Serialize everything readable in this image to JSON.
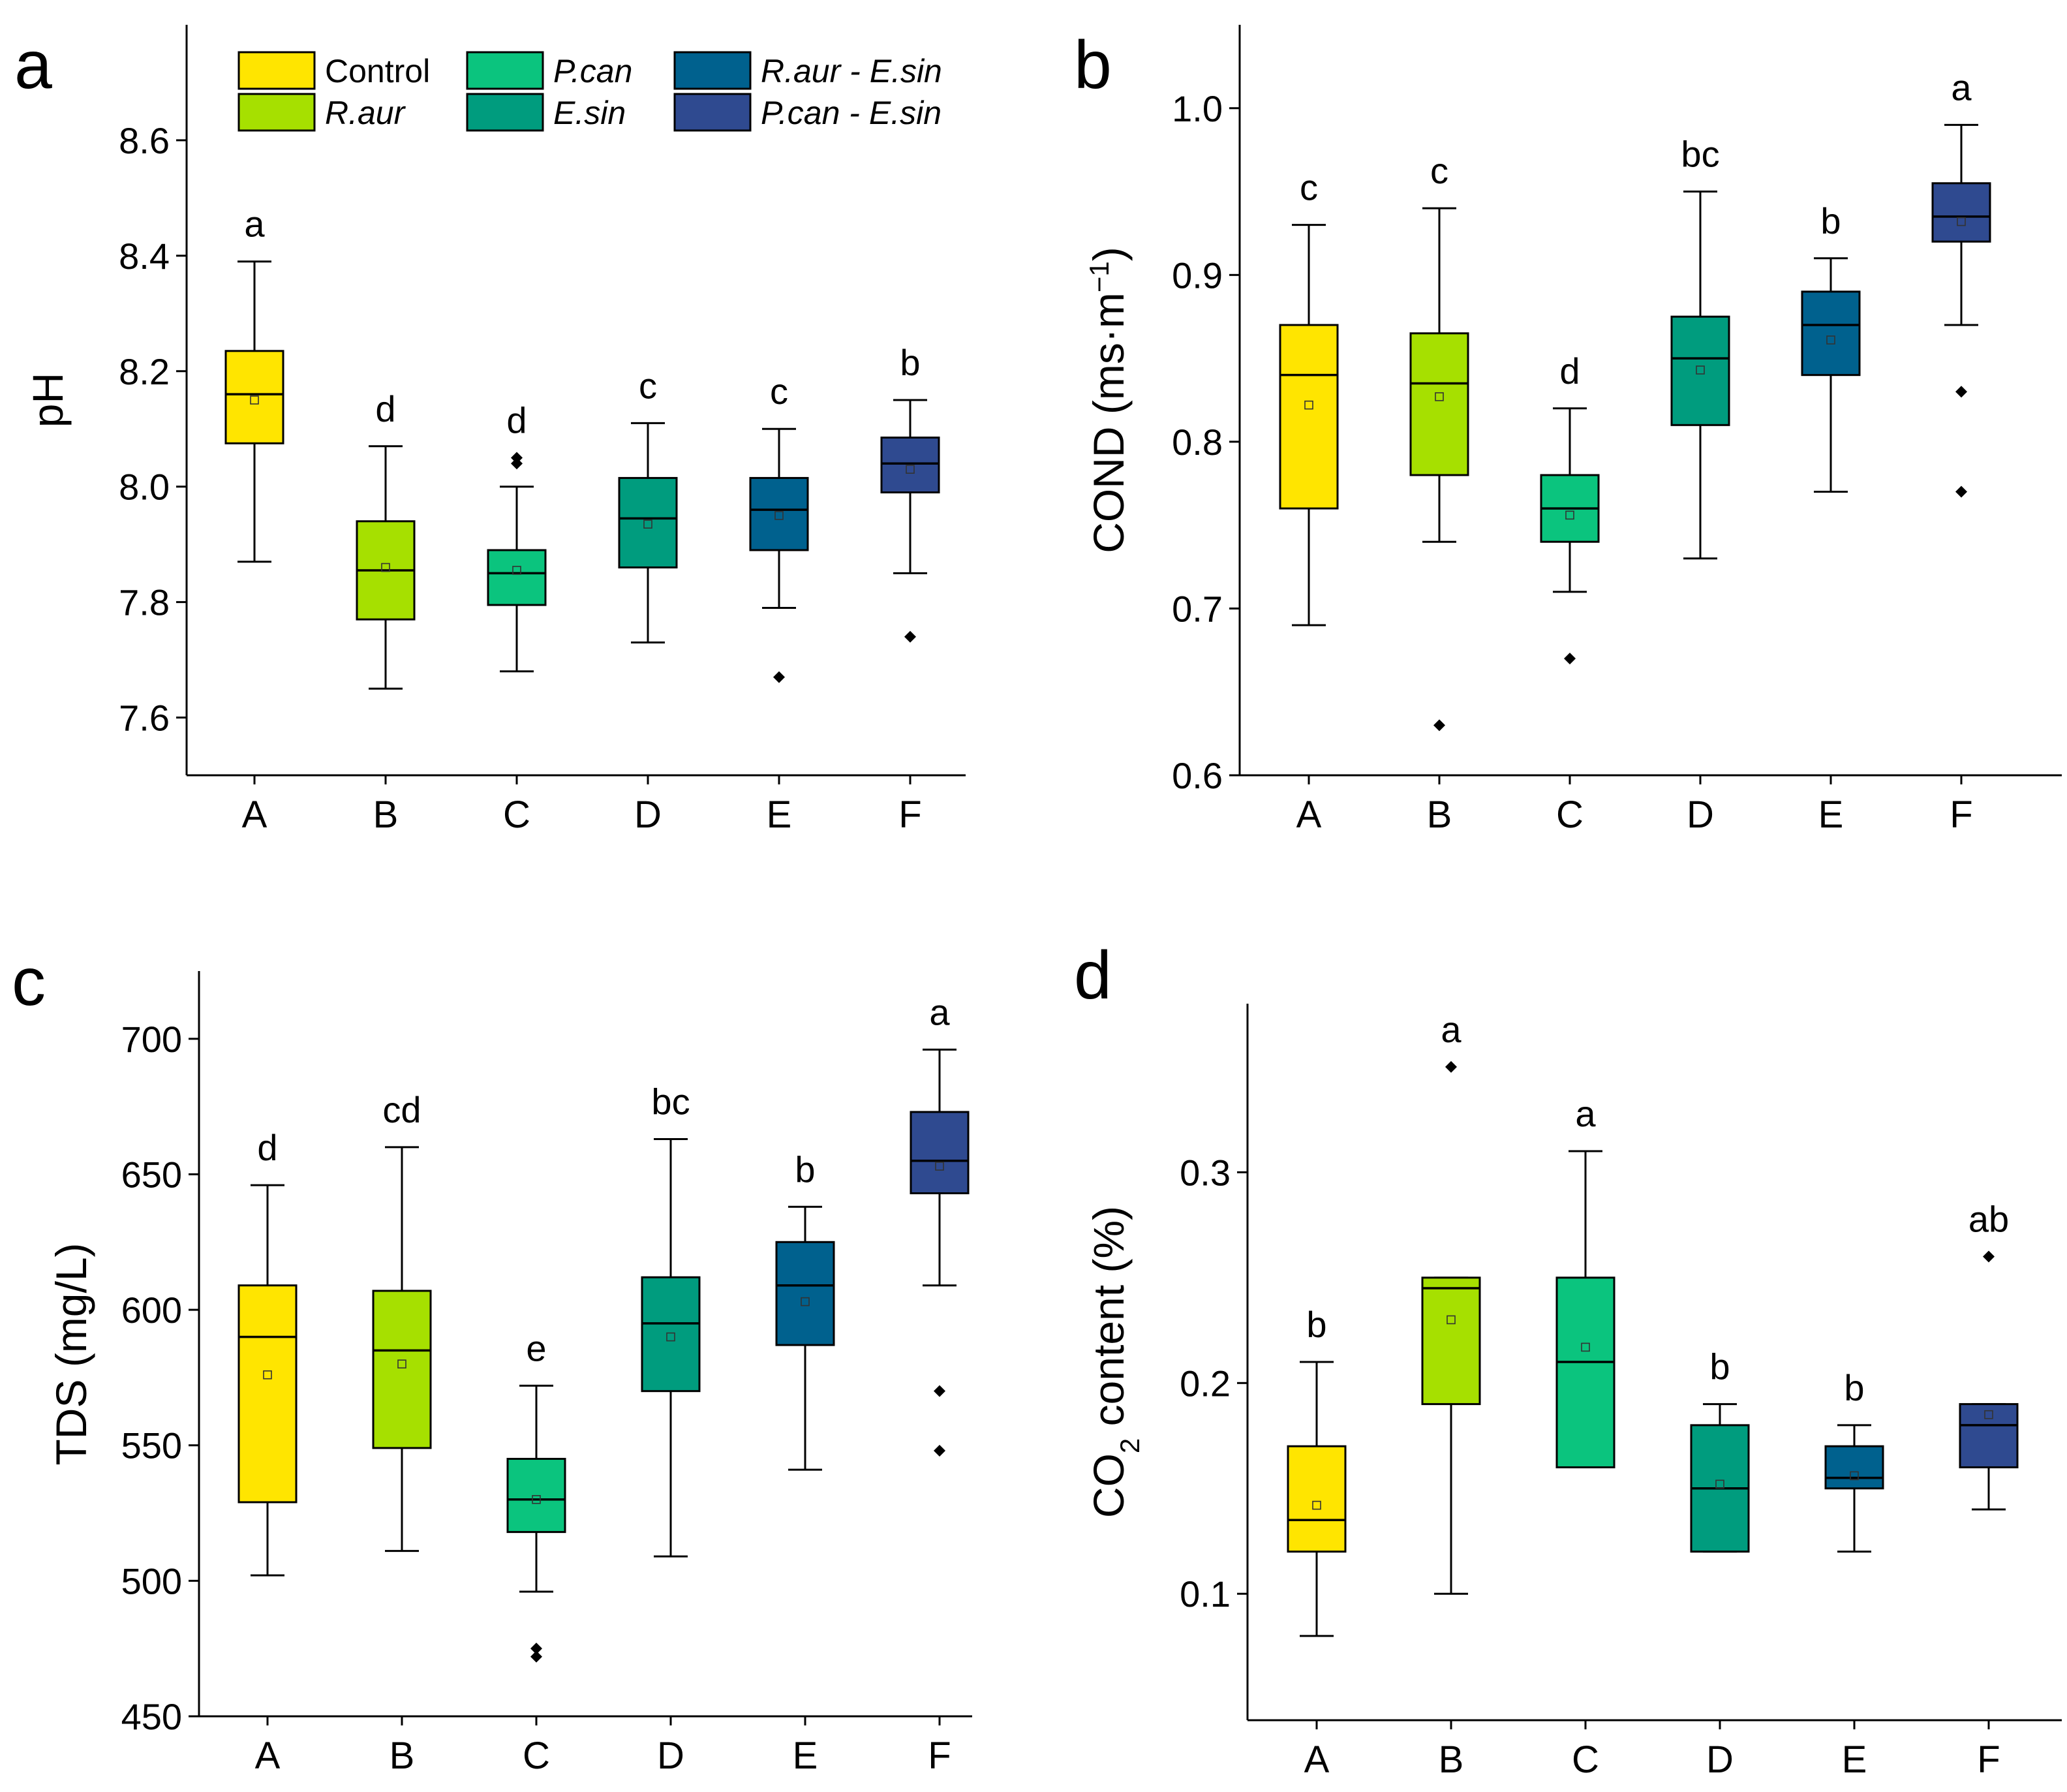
{
  "legend": {
    "entries": [
      {
        "label": "Control",
        "italic": false,
        "color": "#FFE500"
      },
      {
        "label": "R.aur",
        "italic": true,
        "color": "#A6E000"
      },
      {
        "label": "P.can",
        "italic": true,
        "color": "#0BC47E"
      },
      {
        "label": "E.sin",
        "italic": true,
        "color": "#009C7E"
      },
      {
        "label": "R.aur - E.sin",
        "italic": true,
        "color": "#00618E"
      },
      {
        "label": "P.can - E.sin",
        "italic": true,
        "color": "#2F4A90"
      }
    ]
  },
  "chart_data": [
    {
      "type": "box",
      "panel": "a",
      "ylabel": "pH",
      "ylim": [
        7.5,
        8.8
      ],
      "yticks": [
        7.6,
        7.8,
        8.0,
        8.2,
        8.4,
        8.6
      ],
      "ytick_labels": [
        "7.6",
        "7.8",
        "8.0",
        "8.2",
        "8.4",
        "8.6"
      ],
      "categories": [
        "A",
        "B",
        "C",
        "D",
        "E",
        "F"
      ],
      "boxes": [
        {
          "min": 7.87,
          "q1": 8.075,
          "median": 8.16,
          "q3": 8.235,
          "max": 8.39,
          "mean": 8.15,
          "outliers": [],
          "sig": "a"
        },
        {
          "min": 7.65,
          "q1": 7.77,
          "median": 7.855,
          "q3": 7.94,
          "max": 8.07,
          "mean": 7.86,
          "outliers": [],
          "sig": "d"
        },
        {
          "min": 7.68,
          "q1": 7.795,
          "median": 7.85,
          "q3": 7.89,
          "max": 8.0,
          "mean": 7.855,
          "outliers": [
            8.04,
            8.05
          ],
          "sig": "d"
        },
        {
          "min": 7.73,
          "q1": 7.86,
          "median": 7.945,
          "q3": 8.015,
          "max": 8.11,
          "mean": 7.935,
          "outliers": [],
          "sig": "c"
        },
        {
          "min": 7.79,
          "q1": 7.89,
          "median": 7.96,
          "q3": 8.015,
          "max": 8.1,
          "mean": 7.95,
          "outliers": [
            7.67
          ],
          "sig": "c"
        },
        {
          "min": 7.85,
          "q1": 7.99,
          "median": 8.04,
          "q3": 8.085,
          "max": 8.15,
          "mean": 8.03,
          "outliers": [
            7.74
          ],
          "sig": "b"
        }
      ]
    },
    {
      "type": "box",
      "panel": "b",
      "ylabel": "COND (ms·m",
      "ylabel_sup": "−1",
      "ylabel_end": ")",
      "ylim": [
        0.6,
        1.05
      ],
      "yticks": [
        0.6,
        0.7,
        0.8,
        0.9,
        1.0
      ],
      "ytick_labels": [
        "0.6",
        "0.7",
        "0.8",
        "0.9",
        "1.0"
      ],
      "categories": [
        "A",
        "B",
        "C",
        "D",
        "E",
        "F"
      ],
      "boxes": [
        {
          "min": 0.69,
          "q1": 0.76,
          "median": 0.84,
          "q3": 0.87,
          "max": 0.93,
          "mean": 0.822,
          "outliers": [],
          "sig": "c"
        },
        {
          "min": 0.74,
          "q1": 0.78,
          "median": 0.835,
          "q3": 0.865,
          "max": 0.94,
          "mean": 0.827,
          "outliers": [
            0.63
          ],
          "sig": "c"
        },
        {
          "min": 0.71,
          "q1": 0.74,
          "median": 0.76,
          "q3": 0.78,
          "max": 0.82,
          "mean": 0.756,
          "outliers": [
            0.67
          ],
          "sig": "d"
        },
        {
          "min": 0.73,
          "q1": 0.81,
          "median": 0.85,
          "q3": 0.875,
          "max": 0.95,
          "mean": 0.843,
          "outliers": [],
          "sig": "bc"
        },
        {
          "min": 0.77,
          "q1": 0.84,
          "median": 0.87,
          "q3": 0.89,
          "max": 0.91,
          "mean": 0.861,
          "outliers": [],
          "sig": "b"
        },
        {
          "min": 0.87,
          "q1": 0.92,
          "median": 0.935,
          "q3": 0.955,
          "max": 0.99,
          "mean": 0.932,
          "outliers": [
            0.83,
            0.77
          ],
          "sig": "a"
        }
      ]
    },
    {
      "type": "box",
      "panel": "c",
      "ylabel": "TDS (mg/L)",
      "ylim": [
        450,
        725
      ],
      "yticks": [
        450,
        500,
        550,
        600,
        650,
        700
      ],
      "ytick_labels": [
        "450",
        "500",
        "550",
        "600",
        "650",
        "700"
      ],
      "categories": [
        "A",
        "B",
        "C",
        "D",
        "E",
        "F"
      ],
      "boxes": [
        {
          "min": 502,
          "q1": 529,
          "median": 590,
          "q3": 609,
          "max": 646,
          "mean": 576,
          "outliers": [],
          "sig": "d"
        },
        {
          "min": 511,
          "q1": 549,
          "median": 585,
          "q3": 607,
          "max": 660,
          "mean": 580,
          "outliers": [],
          "sig": "cd"
        },
        {
          "min": 496,
          "q1": 518,
          "median": 530,
          "q3": 545,
          "max": 572,
          "mean": 530,
          "outliers": [
            475,
            472
          ],
          "sig": "e"
        },
        {
          "min": 509,
          "q1": 570,
          "median": 595,
          "q3": 612,
          "max": 663,
          "mean": 590,
          "outliers": [],
          "sig": "bc"
        },
        {
          "min": 541,
          "q1": 587,
          "median": 609,
          "q3": 625,
          "max": 638,
          "mean": 603,
          "outliers": [],
          "sig": "b"
        },
        {
          "min": 609,
          "q1": 643,
          "median": 655,
          "q3": 673,
          "max": 696,
          "mean": 653,
          "outliers": [
            570,
            548
          ],
          "sig": "a"
        }
      ]
    },
    {
      "type": "box",
      "panel": "d",
      "ylabel": "CO",
      "ylabel_sub": "2",
      "ylabel_end": " content (%)",
      "ylim": [
        0.04,
        0.38
      ],
      "yticks": [
        0.1,
        0.2,
        0.3
      ],
      "ytick_labels": [
        "0.1",
        "0.2",
        "0.3"
      ],
      "categories": [
        "A",
        "B",
        "C",
        "D",
        "E",
        "F"
      ],
      "boxes": [
        {
          "min": 0.08,
          "q1": 0.12,
          "median": 0.135,
          "q3": 0.17,
          "max": 0.21,
          "mean": 0.142,
          "outliers": [],
          "sig": "b"
        },
        {
          "min": 0.1,
          "q1": 0.19,
          "median": 0.245,
          "q3": 0.25,
          "max": 0.25,
          "mean": 0.23,
          "outliers": [
            0.35
          ],
          "sig": "a"
        },
        {
          "min": 0.16,
          "q1": 0.16,
          "median": 0.21,
          "q3": 0.25,
          "max": 0.31,
          "mean": 0.217,
          "outliers": [],
          "sig": "a"
        },
        {
          "min": 0.12,
          "q1": 0.12,
          "median": 0.15,
          "q3": 0.18,
          "max": 0.19,
          "mean": 0.152,
          "outliers": [],
          "sig": "b"
        },
        {
          "min": 0.12,
          "q1": 0.15,
          "median": 0.155,
          "q3": 0.17,
          "max": 0.18,
          "mean": 0.156,
          "outliers": [],
          "sig": "b"
        },
        {
          "min": 0.14,
          "q1": 0.16,
          "median": 0.18,
          "q3": 0.19,
          "max": 0.19,
          "mean": 0.185,
          "outliers": [
            0.26
          ],
          "sig": "ab"
        }
      ]
    }
  ]
}
